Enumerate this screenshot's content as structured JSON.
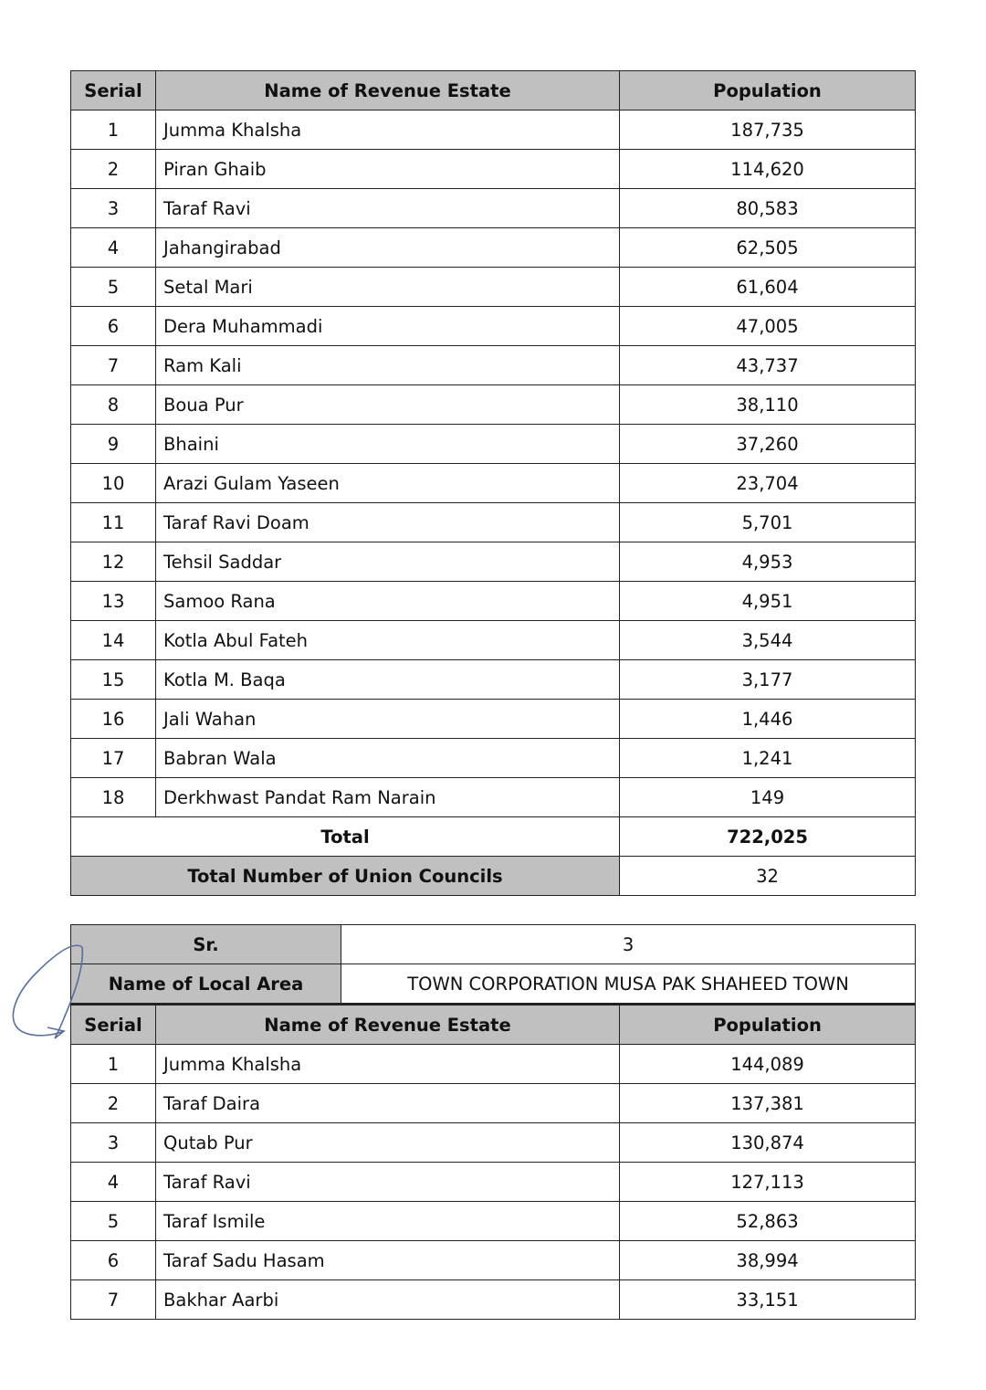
{
  "table1": {
    "headers": {
      "serial": "Serial",
      "name": "Name of Revenue Estate",
      "population": "Population"
    },
    "rows": [
      {
        "serial": "1",
        "name": "Jumma Khalsha",
        "population": "187,735"
      },
      {
        "serial": "2",
        "name": "Piran Ghaib",
        "population": "114,620"
      },
      {
        "serial": "3",
        "name": "Taraf Ravi",
        "population": "80,583"
      },
      {
        "serial": "4",
        "name": "Jahangirabad",
        "population": "62,505"
      },
      {
        "serial": "5",
        "name": "Setal Mari",
        "population": "61,604"
      },
      {
        "serial": "6",
        "name": "Dera Muhammadi",
        "population": "47,005"
      },
      {
        "serial": "7",
        "name": "Ram Kali",
        "population": "43,737"
      },
      {
        "serial": "8",
        "name": "Boua Pur",
        "population": "38,110"
      },
      {
        "serial": "9",
        "name": "Bhaini",
        "population": "37,260"
      },
      {
        "serial": "10",
        "name": "Arazi Gulam Yaseen",
        "population": "23,704"
      },
      {
        "serial": "11",
        "name": "Taraf Ravi Doam",
        "population": "5,701"
      },
      {
        "serial": "12",
        "name": "Tehsil Saddar",
        "population": "4,953"
      },
      {
        "serial": "13",
        "name": "Samoo Rana",
        "population": "4,951"
      },
      {
        "serial": "14",
        "name": "Kotla Abul Fateh",
        "population": "3,544"
      },
      {
        "serial": "15",
        "name": "Kotla M. Baqa",
        "population": "3,177"
      },
      {
        "serial": "16",
        "name": "Jali Wahan",
        "population": "1,446"
      },
      {
        "serial": "17",
        "name": "Babran Wala",
        "population": "1,241"
      },
      {
        "serial": "18",
        "name": "Derkhwast Pandat Ram Narain",
        "population": "149"
      }
    ],
    "total_label": "Total",
    "total_value": "722,025",
    "uc_label": "Total Number of Union Councils",
    "uc_value": "32"
  },
  "table2": {
    "sr_label": "Sr.",
    "sr_value": "3",
    "area_label": "Name of Local Area",
    "area_value": "TOWN CORPORATION MUSA PAK SHAHEED TOWN",
    "headers": {
      "serial": "Serial",
      "name": "Name of Revenue Estate",
      "population": "Population"
    },
    "rows": [
      {
        "serial": "1",
        "name": "Jumma Khalsha",
        "population": "144,089"
      },
      {
        "serial": "2",
        "name": "Taraf Daira",
        "population": "137,381"
      },
      {
        "serial": "3",
        "name": "Qutab Pur",
        "population": "130,874"
      },
      {
        "serial": "4",
        "name": "Taraf Ravi",
        "population": "127,113"
      },
      {
        "serial": "5",
        "name": "Taraf Ismile",
        "population": "52,863"
      },
      {
        "serial": "6",
        "name": "Taraf Sadu Hasam",
        "population": "38,994"
      },
      {
        "serial": "7",
        "name": "Bakhar Aarbi",
        "population": "33,151"
      }
    ]
  },
  "colors": {
    "header_bg": "#c0c0c0",
    "border": "#222222",
    "signature_ink": "#5a6f9a"
  }
}
